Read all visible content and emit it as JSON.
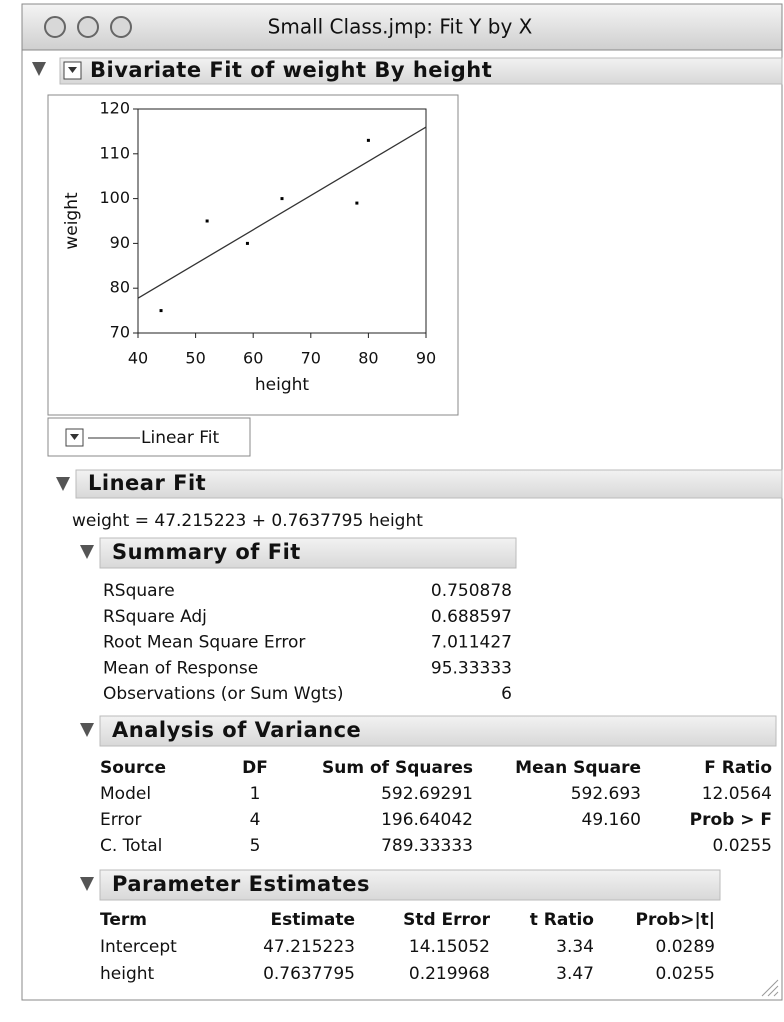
{
  "window": {
    "title": "Small Class.jmp: Fit Y by X"
  },
  "chart_data": {
    "type": "scatter",
    "title": "Bivariate Fit of weight By height",
    "x_label": "height",
    "y_label": "weight",
    "x": [
      44,
      52,
      59,
      65,
      78,
      80
    ],
    "values": [
      75,
      95,
      90,
      100,
      99,
      113
    ],
    "xlim": [
      40,
      90
    ],
    "ylim": [
      70,
      120
    ],
    "xticks": [
      40,
      50,
      60,
      70,
      80,
      90
    ],
    "yticks": [
      70,
      80,
      90,
      100,
      110,
      120
    ],
    "point_color": "#000000",
    "line_color": "#333333",
    "legend": "Linear Fit"
  },
  "linear_fit": {
    "title": "Linear Fit",
    "equation": {
      "lhs": "weight =",
      "intercept": 47.215223,
      "op": "+",
      "slope": 0.7637795,
      "rhs": "height"
    }
  },
  "summary_of_fit": {
    "title": "Summary of Fit",
    "rows": [
      [
        "RSquare",
        "0.750878"
      ],
      [
        "RSquare Adj",
        "0.688597"
      ],
      [
        "Root Mean Square Error",
        "7.011427"
      ],
      [
        "Mean of Response",
        "95.33333"
      ],
      [
        "Observations (or Sum Wgts)",
        "6"
      ]
    ]
  },
  "analysis_of_variance": {
    "title": "Analysis of Variance",
    "columns": [
      "Source",
      "DF",
      "Sum of Squares",
      "Mean Square",
      "F Ratio"
    ],
    "rows": [
      [
        "Model",
        "1",
        "592.69291",
        "592.693",
        "12.0564"
      ],
      [
        "Error",
        "4",
        "196.64042",
        "49.160",
        "Prob > F"
      ],
      [
        "C. Total",
        "5",
        "789.33333",
        null,
        "0.0255"
      ]
    ]
  },
  "parameter_estimates": {
    "title": "Parameter Estimates",
    "columns": [
      "Term",
      "Estimate",
      "Std Error",
      "t Ratio",
      "Prob>|t|"
    ],
    "rows": [
      [
        "Intercept",
        "47.215223",
        "14.15052",
        "3.34",
        "0.0289"
      ],
      [
        "height",
        "0.7637795",
        "0.219968",
        "3.47",
        "0.0255"
      ]
    ]
  }
}
